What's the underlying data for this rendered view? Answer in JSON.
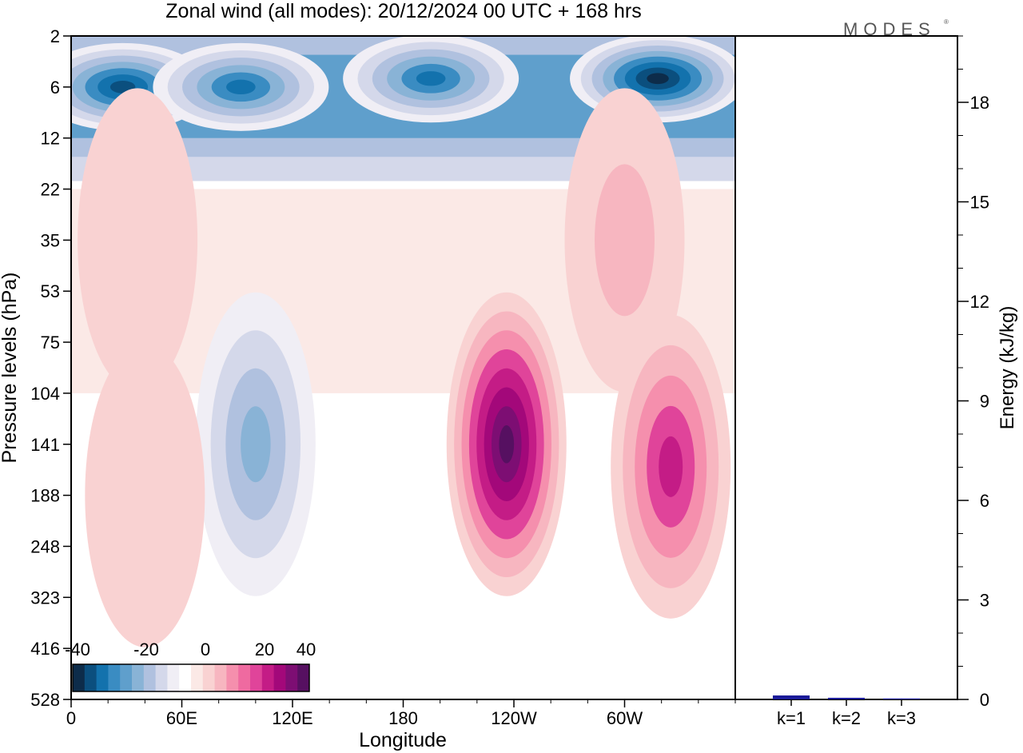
{
  "title": "Zonal wind (all modes):  20/12/2024  00 UTC  + 168 hrs",
  "brand": "MODES",
  "brand_mark": "®",
  "chart_data": [
    {
      "type": "heatmap",
      "xlabel": "Longitude",
      "ylabel": "Pressure levels (hPa)",
      "x_ticks": [
        "0",
        "60E",
        "120E",
        "180",
        "120W",
        "60W"
      ],
      "y_ticks": [
        "2",
        "6",
        "12",
        "22",
        "35",
        "53",
        "75",
        "104",
        "141",
        "188",
        "248",
        "323",
        "416",
        "528"
      ],
      "colorbar": {
        "tick_labels": [
          "-40",
          "-20",
          "0",
          "20",
          "40"
        ],
        "range": [
          -40,
          40
        ],
        "colors": [
          "#0d2c4a",
          "#0b4f7e",
          "#1372ad",
          "#3a8cc2",
          "#5f9fcc",
          "#89b3d6",
          "#b0c1df",
          "#d4d8ea",
          "#f0eef5",
          "#ffffff",
          "#fbe9e6",
          "#f9d2d2",
          "#f7b6c0",
          "#f58fad",
          "#ef6aa0",
          "#e0449a",
          "#c41c86",
          "#a3087a",
          "#7d0e73",
          "#561061"
        ]
      },
      "features": [
        {
          "lon": 28,
          "lev": 6,
          "value": -36
        },
        {
          "lon": 92,
          "lev": 6,
          "value": -28
        },
        {
          "lon": 195,
          "lev": 5,
          "value": -32
        },
        {
          "lon": 318,
          "lev": 5,
          "value": -38
        },
        {
          "lon": 36,
          "lev": 35,
          "value": 6
        },
        {
          "lon": 300,
          "lev": 35,
          "value": 8
        },
        {
          "lon": 100,
          "lev": 141,
          "value": -22
        },
        {
          "lon": 236,
          "lev": 141,
          "value": 38
        },
        {
          "lon": 325,
          "lev": 160,
          "value": 26
        },
        {
          "lon": 40,
          "lev": 188,
          "value": 6
        }
      ]
    },
    {
      "type": "bar",
      "ylabel": "Energy (kJ/kg)",
      "categories": [
        "k=1",
        "k=2",
        "k=3"
      ],
      "values": [
        0.12,
        0.05,
        0.03
      ],
      "ylim": [
        0,
        20
      ],
      "y_ticks": [
        "0",
        "3",
        "6",
        "9",
        "12",
        "15",
        "18"
      ],
      "bar_color": "#1a1a99"
    }
  ]
}
